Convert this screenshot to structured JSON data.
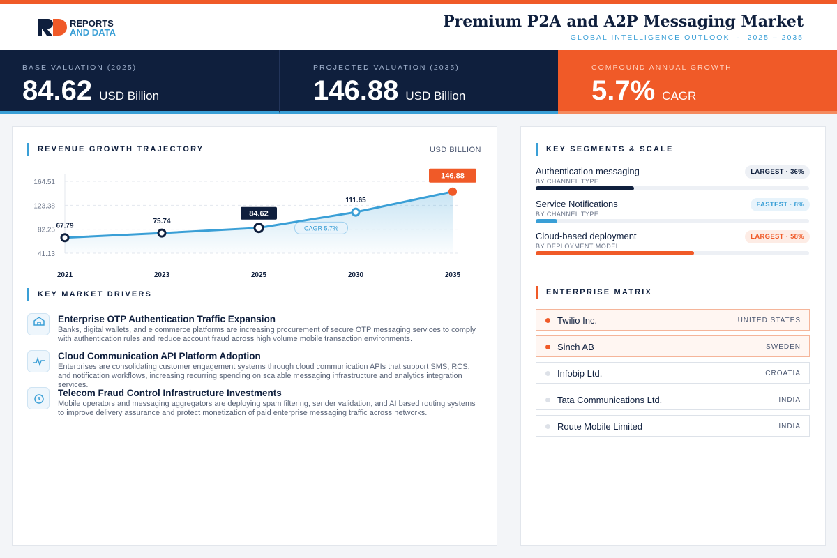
{
  "header": {
    "logo_top": "REPORTS",
    "logo_bottom": "AND DATA",
    "title": "Premium P2A and A2P Messaging Market",
    "subtitle": "GLOBAL INTELLIGENCE OUTLOOK  ·  2025 – 2035"
  },
  "kpis": [
    {
      "label": "BASE VALUATION (2025)",
      "value": "84.62",
      "unit": "USD Billion"
    },
    {
      "label": "PROJECTED VALUATION (2035)",
      "value": "146.88",
      "unit": "USD Billion"
    },
    {
      "label": "COMPOUND ANNUAL GROWTH",
      "value": "5.7%",
      "unit": "CAGR"
    }
  ],
  "chart_data": {
    "type": "line",
    "title": "REVENUE GROWTH TRAJECTORY",
    "unit_label": "USD BILLION",
    "categories": [
      "2021",
      "2023",
      "2025",
      "2030",
      "2035"
    ],
    "values": [
      67.79,
      75.74,
      84.62,
      111.65,
      146.88
    ],
    "color": "#3a9fd6",
    "ylim": [
      41.13,
      164.51
    ],
    "yticks": [
      41.13,
      82.25,
      123.38,
      164.51
    ],
    "grid": true,
    "annotation": "CAGR 5.7%"
  },
  "drivers": {
    "title": "KEY MARKET DRIVERS",
    "items": [
      {
        "title": "Enterprise OTP Authentication Traffic Expansion",
        "text": "Banks, digital wallets, and e commerce platforms are increasing procurement of secure OTP messaging services to comply with authentication rules and reduce account fraud across high volume mobile transaction environments."
      },
      {
        "title": "Cloud Communication API Platform Adoption",
        "text": "Enterprises are consolidating customer engagement systems through cloud communication APIs that support SMS, RCS, and notification workflows, increasing recurring spending on scalable messaging infrastructure and analytics integration services."
      },
      {
        "title": "Telecom Fraud Control Infrastructure Investments",
        "text": "Mobile operators and messaging aggregators are deploying spam filtering, sender validation, and AI based routing systems to improve delivery assurance and protect monetization of paid enterprise messaging traffic across networks."
      }
    ]
  },
  "segments": {
    "title": "KEY SEGMENTS & SCALE",
    "items": [
      {
        "name": "Authentication messaging",
        "group": "BY CHANNEL TYPE",
        "badge": "LARGEST · 36%",
        "share": 36,
        "color": "#0f1f3d"
      },
      {
        "name": "Service Notifications",
        "group": "BY CHANNEL TYPE",
        "badge": "FASTEST · 8%",
        "share": 8,
        "color": "#3a9fd6"
      },
      {
        "name": "Cloud-based deployment",
        "group": "BY DEPLOYMENT MODEL",
        "badge": "LARGEST · 58%",
        "share": 58,
        "color": "#f05a28"
      }
    ]
  },
  "matrix": {
    "title": "ENTERPRISE MATRIX",
    "rows": [
      {
        "company": "Twilio Inc.",
        "country": "UNITED STATES",
        "highlight": true
      },
      {
        "company": "Sinch AB",
        "country": "SWEDEN",
        "highlight": true
      },
      {
        "company": "Infobip Ltd.",
        "country": "CROATIA",
        "highlight": false
      },
      {
        "company": "Tata Communications Ltd.",
        "country": "INDIA",
        "highlight": false
      },
      {
        "company": "Route Mobile Limited",
        "country": "INDIA",
        "highlight": false
      }
    ]
  }
}
